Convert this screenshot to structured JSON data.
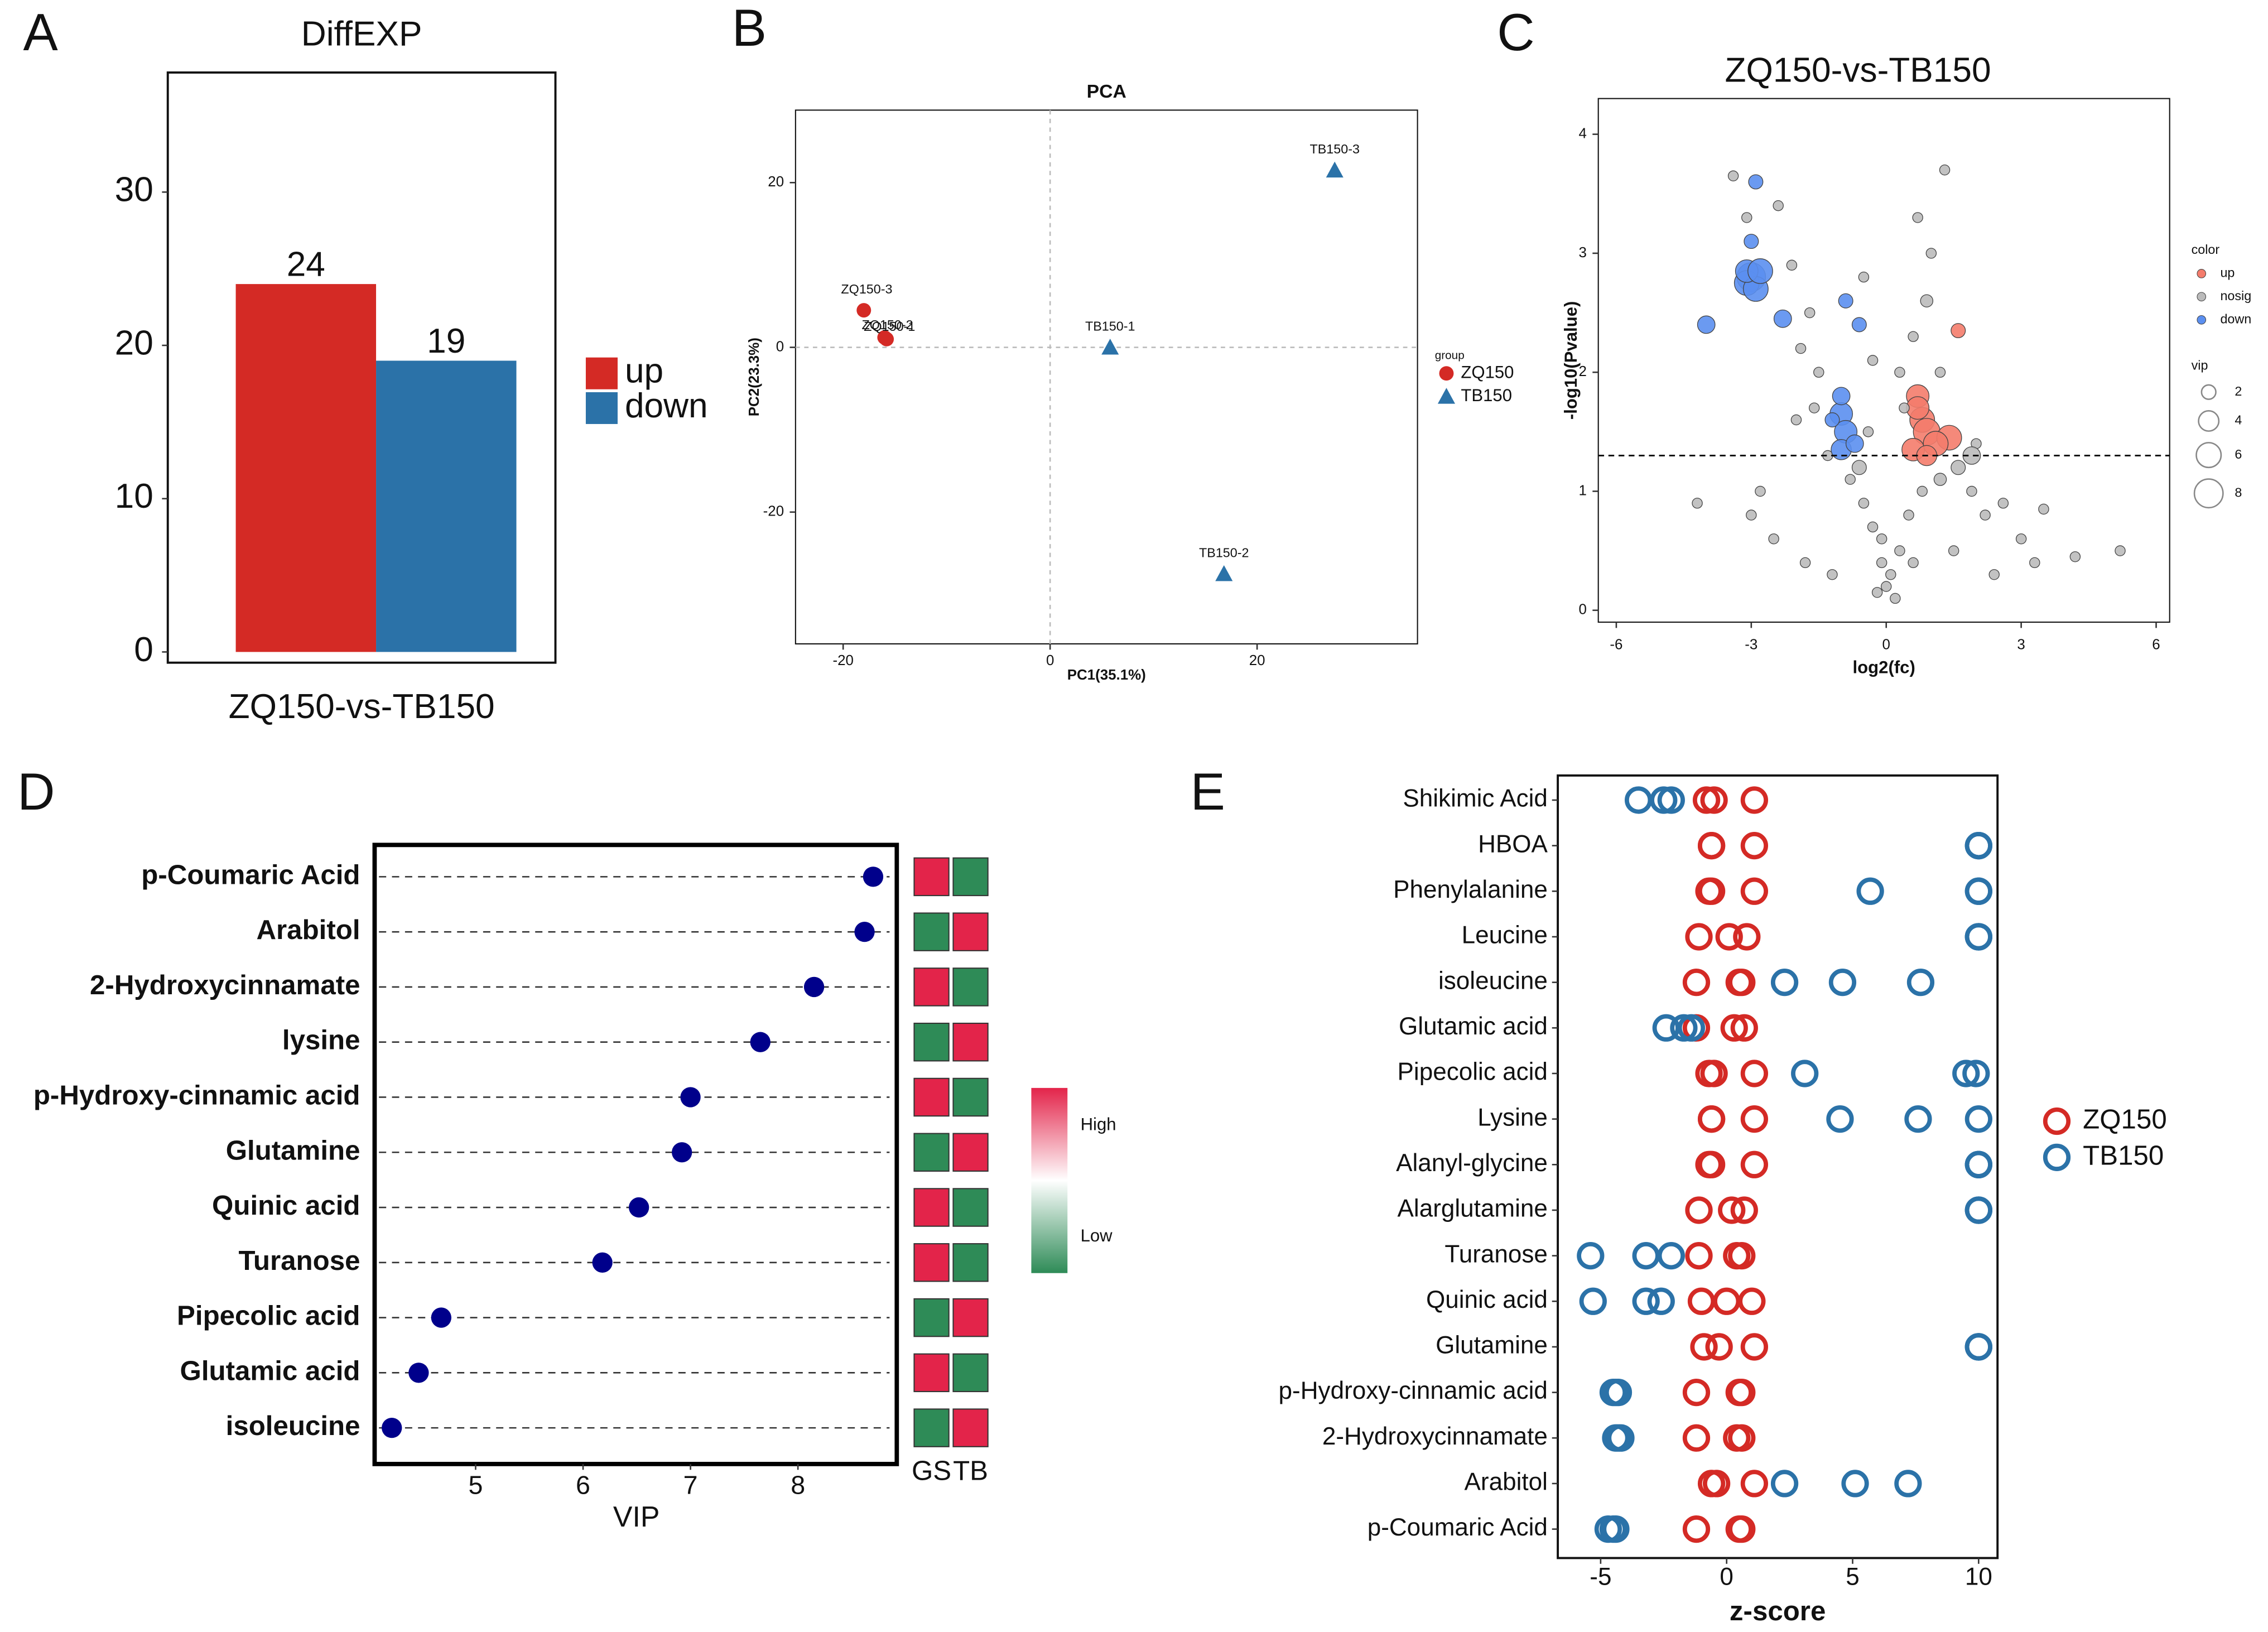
{
  "chart_data": [
    {
      "type": "bar",
      "label": "A",
      "title": "DiffEXP",
      "categories": [
        "ZQ150-vs-TB150"
      ],
      "series": [
        {
          "name": "up",
          "color": "#d42a25",
          "values": [
            24
          ]
        },
        {
          "name": "down",
          "color": "#2b72a8",
          "values": [
            19
          ]
        }
      ],
      "ylim": [
        -0.7,
        37.8
      ],
      "yticks": [
        0,
        10,
        20,
        30
      ]
    },
    {
      "type": "scatter",
      "label": "B",
      "title": "PCA",
      "xlabel": "PC1(35.1%)",
      "ylabel": "PC2(23.3%)",
      "legend_title": "group",
      "series": [
        {
          "name": "ZQ150",
          "color": "#d42a25",
          "marker": "circle",
          "x": [
            -18,
            -16,
            -15.8
          ],
          "y": [
            4.5,
            1.2,
            1.0
          ],
          "labels": [
            "ZQ150-3",
            "ZQ150-2",
            "ZQ150-1"
          ]
        },
        {
          "name": "TB150",
          "color": "#2b72a8",
          "marker": "triangle",
          "x": [
            5.8,
            16.8,
            27.5
          ],
          "y": [
            0,
            -27.5,
            21.5
          ],
          "labels": [
            "TB150-1",
            "TB150-2",
            "TB150-3"
          ]
        }
      ],
      "xlim": [
        -24.6,
        35.5
      ],
      "ylim": [
        -36,
        28.8
      ],
      "xticks": [
        -20,
        0,
        20
      ],
      "yticks": [
        -20,
        0,
        20
      ],
      "reflines": {
        "x": 0,
        "y": 0
      }
    },
    {
      "type": "bubble",
      "label": "C",
      "title": "ZQ150-vs-TB150",
      "xlabel": "log2(fc)",
      "ylabel": "-log10(Pvalue)",
      "legend_title": "color",
      "size_title": "vip",
      "series": [
        {
          "name": "up",
          "color": "#f47c6c",
          "x": [
            0.7,
            0.8,
            0.9,
            1.4,
            0.6,
            1.1,
            0.7,
            1.6,
            0.9
          ],
          "y": [
            1.8,
            1.6,
            1.5,
            1.45,
            1.35,
            1.4,
            1.7,
            2.35,
            1.3
          ],
          "size": [
            5,
            6,
            7,
            6,
            5,
            6,
            5,
            2,
            4
          ]
        },
        {
          "name": "nosig",
          "color": "#bbbbbb",
          "x": [
            -3.4,
            -3.1,
            -2.4,
            -2.1,
            -1.7,
            -1.9,
            -1.5,
            -1.6,
            -2.0,
            -1.3,
            -0.8,
            -0.5,
            -0.3,
            -0.1,
            0,
            0.1,
            0.2,
            -0.2,
            0.3,
            0.5,
            0.8,
            1.2,
            1.6,
            1.9,
            2.2,
            2.6,
            3.0,
            3.3,
            4.2,
            5.2,
            3.5,
            -4.2,
            -3.0,
            -2.5,
            -1.8,
            -1.2,
            0.9,
            1.0,
            0.7,
            0.6,
            0.3,
            -0.3,
            -0.5,
            1.3,
            0.4,
            1.2,
            2.0,
            1.9,
            -0.4,
            -0.6,
            2.4,
            1.5,
            -2.8,
            0.6,
            -0.1
          ],
          "y": [
            3.65,
            3.3,
            3.4,
            2.9,
            2.5,
            2.2,
            2.0,
            1.7,
            1.6,
            1.3,
            1.1,
            0.9,
            0.7,
            0.4,
            0.2,
            0.3,
            0.1,
            0.15,
            0.5,
            0.8,
            1.0,
            1.1,
            1.2,
            1.0,
            0.8,
            0.9,
            0.6,
            0.4,
            0.45,
            0.5,
            0.85,
            0.9,
            0.8,
            0.6,
            0.4,
            0.3,
            2.6,
            3.0,
            3.3,
            2.3,
            2.0,
            2.1,
            2.8,
            3.7,
            1.7,
            2.0,
            1.4,
            1.3,
            1.5,
            1.2,
            0.3,
            0.5,
            1.0,
            0.4,
            0.6
          ],
          "size": [
            1,
            1,
            1,
            1,
            1,
            1,
            1,
            1,
            1,
            1,
            1,
            1,
            1,
            1,
            1,
            1,
            1,
            1,
            1,
            1,
            1,
            1.5,
            2,
            1,
            1,
            1,
            1,
            1,
            1,
            1,
            1,
            1,
            1,
            1,
            1,
            1,
            1.5,
            1,
            1,
            1,
            1,
            1,
            1,
            1,
            1,
            1,
            1,
            3,
            1,
            2,
            1,
            1,
            1,
            1,
            1
          ]
        },
        {
          "name": "down",
          "color": "#5b8ff0",
          "x": [
            -3.0,
            -3.1,
            -2.9,
            -3.1,
            -2.8,
            -3.0,
            -2.9,
            -2.3,
            -4.0,
            -1.0,
            -0.9,
            -1.0,
            -0.7,
            -1.0,
            -0.6,
            -0.9,
            -1.2
          ],
          "y": [
            2.8,
            2.75,
            2.7,
            2.85,
            2.85,
            3.1,
            3.6,
            2.45,
            2.4,
            1.65,
            1.5,
            1.35,
            1.4,
            1.8,
            2.4,
            2.6,
            1.6
          ],
          "size": [
            8,
            6,
            6,
            5,
            6,
            2,
            2,
            3,
            3,
            5,
            5,
            4,
            3,
            3,
            2,
            2,
            2
          ]
        }
      ],
      "size_legend": [
        2,
        4,
        6,
        8
      ],
      "threshold": 1.3,
      "xlim": [
        -6.4,
        6.3
      ],
      "ylim": [
        -0.1,
        4.3
      ],
      "xticks": [
        -6,
        -3,
        0,
        3,
        6
      ],
      "yticks": [
        0,
        1,
        2,
        3,
        4
      ]
    },
    {
      "type": "lollipop",
      "label": "D",
      "xlabel": "VIP",
      "categories": [
        "p-Coumaric Acid",
        "Arabitol",
        "2-Hydroxycinnamate",
        "lysine",
        "p-Hydroxy-cinnamic acid",
        "Glutamine",
        "Quinic acid",
        "Turanose",
        "Pipecolic acid",
        "Glutamic acid",
        "isoleucine"
      ],
      "values": [
        8.7,
        8.62,
        8.15,
        7.65,
        7.0,
        6.92,
        6.52,
        6.18,
        4.68,
        4.47,
        4.22
      ],
      "color": "#00008b",
      "xlim": [
        4.06,
        8.92
      ],
      "xticks": [
        5,
        6,
        7,
        8
      ],
      "heatmap": {
        "columns": [
          "GS",
          "TB"
        ],
        "values": [
          [
            1,
            -1
          ],
          [
            -1,
            1
          ],
          [
            1,
            -1
          ],
          [
            -1,
            1
          ],
          [
            1,
            -1
          ],
          [
            -1,
            1
          ],
          [
            1,
            -1
          ],
          [
            1,
            -1
          ],
          [
            -1,
            1
          ],
          [
            1,
            -1
          ],
          [
            -1,
            1
          ]
        ],
        "high_color": "#e3244a",
        "low_color": "#2e8b57",
        "legend": [
          "High",
          "Low"
        ]
      }
    },
    {
      "type": "dot",
      "label": "E",
      "xlabel": "z-score",
      "categories": [
        "Shikimic Acid",
        "HBOA",
        "Phenylalanine",
        "Leucine",
        "isoleucine",
        "Glutamic acid",
        "Pipecolic acid",
        "Lysine",
        "Alanyl-glycine",
        "Alarglutamine",
        "Turanose",
        "Quinic acid",
        "Glutamine",
        "p-Hydroxy-cinnamic acid",
        "2-Hydroxycinnamate",
        "Arabitol",
        "p-Coumaric Acid"
      ],
      "series": [
        {
          "name": "ZQ150",
          "color": "#d42a25",
          "values": [
            [
              -0.8,
              -0.5,
              1.1
            ],
            [
              -0.6,
              -0.6,
              1.1
            ],
            [
              -0.7,
              -0.6,
              1.1
            ],
            [
              -1.1,
              0.1,
              0.8
            ],
            [
              -1.2,
              0.5,
              0.6
            ],
            [
              -1.2,
              0.3,
              0.7
            ],
            [
              -0.7,
              -0.5,
              1.1
            ],
            [
              -0.6,
              -0.6,
              1.1
            ],
            [
              -0.7,
              -0.6,
              1.1
            ],
            [
              -1.1,
              0.2,
              0.7
            ],
            [
              -1.1,
              0.4,
              0.6
            ],
            [
              -1.0,
              0,
              1.0
            ],
            [
              -0.9,
              -0.3,
              1.1
            ],
            [
              -1.2,
              0.5,
              0.6
            ],
            [
              -1.2,
              0.4,
              0.6
            ],
            [
              -0.6,
              -0.4,
              1.1
            ],
            [
              -1.2,
              0.5,
              0.6
            ]
          ]
        },
        {
          "name": "TB150",
          "color": "#2b72a8",
          "values": [
            [
              -3.5,
              -2.5,
              -2.2
            ],
            [
              10,
              10,
              10
            ],
            [
              5.7,
              10,
              10
            ],
            [
              10,
              10,
              10
            ],
            [
              2.3,
              4.6,
              7.7
            ],
            [
              -2.4,
              -1.7,
              -1.4
            ],
            [
              3.1,
              9.5,
              9.9
            ],
            [
              4.5,
              7.6,
              10
            ],
            [
              10,
              10,
              10
            ],
            [
              10,
              10,
              10
            ],
            [
              -5.4,
              -3.2,
              -2.2
            ],
            [
              -5.3,
              -3.2,
              -2.6
            ],
            [
              10,
              10,
              10
            ],
            [
              -4.5,
              -4.3,
              -4.4
            ],
            [
              -4.3,
              -4.2,
              -4.4
            ],
            [
              2.3,
              5.1,
              7.2
            ],
            [
              -4.7,
              -4.4,
              -4.5
            ]
          ]
        }
      ],
      "xlim": [
        -6.7,
        10.75
      ],
      "xticks": [
        -5,
        0,
        5,
        10
      ]
    }
  ]
}
